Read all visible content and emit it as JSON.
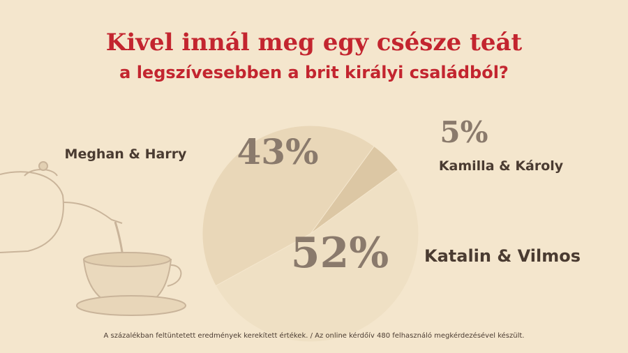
{
  "chart_data": {
    "type": "pie",
    "title": "Kivel innál meg egy csésze teát",
    "subtitle": "a legszívesebben a brit királyi családból?",
    "categories": [
      "Meghan & Harry",
      "Kamilla & Károly",
      "Katalin & Vilmos"
    ],
    "values": [
      43,
      5,
      52
    ],
    "value_labels": [
      "43%",
      "5%",
      "52%"
    ],
    "colors": [
      "#e9d7b8",
      "#dcc7a4",
      "#efe0c4"
    ],
    "footnote": "A százalékban feltüntetett eredmények kerekített értékek.  / Az online kérdőív 480 felhasználó megkérdezésével készült."
  }
}
